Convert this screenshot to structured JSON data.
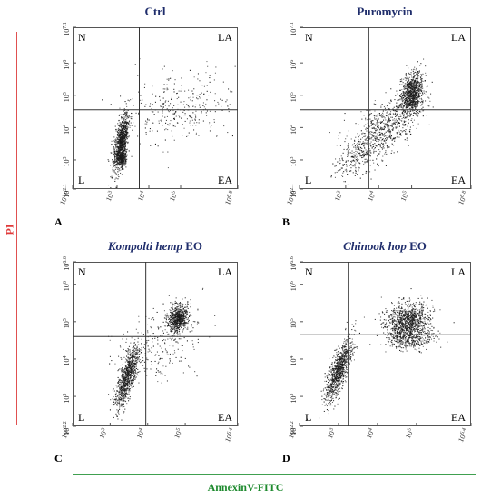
{
  "axis_titles": {
    "y": "PI",
    "x": "AnnexinV-FITC"
  },
  "quadrant_labels": {
    "top_left": "N",
    "top_right": "LA",
    "bottom_left": "L",
    "bottom_right": "EA"
  },
  "colors": {
    "title": "#1f2d6b",
    "y_title": "#e03a3a",
    "x_title": "#1e8a2e",
    "dots": "#1a1a1a"
  },
  "chart_data": [
    {
      "type": "scatter",
      "letter": "A",
      "title_italic": "",
      "title_plain": "Ctrl",
      "x_tick_labels": [
        "10^1.6",
        "10^3",
        "10^4",
        "10^5",
        "10^6.8"
      ],
      "y_tick_labels": [
        "10^2.1",
        "10^3",
        "10^4",
        "10^5",
        "10^6",
        "10^7.1"
      ],
      "xlim": [
        1.6,
        6.8
      ],
      "ylim": [
        2.1,
        7.1
      ],
      "gates": {
        "x": 3.7,
        "y": 4.55
      },
      "populations": [
        {
          "cx": 3.12,
          "cy": 3.55,
          "sx": 0.12,
          "sy": 0.45,
          "n": 950,
          "corr": 0.6
        },
        {
          "cx": 3.15,
          "cy": 3.05,
          "sx": 0.07,
          "sy": 0.12,
          "n": 250,
          "corr": 0.0
        },
        {
          "cx": 4.9,
          "cy": 4.6,
          "sx": 0.9,
          "sy": 0.55,
          "n": 330,
          "corr": 0.2
        }
      ]
    },
    {
      "type": "scatter",
      "letter": "B",
      "title_italic": "",
      "title_plain": "Puromycin",
      "x_tick_labels": [
        "10^1.6",
        "10^3",
        "10^4",
        "10^5",
        "10^6.8"
      ],
      "y_tick_labels": [
        "10^2.1",
        "10^3",
        "10^4",
        "10^5",
        "10^6",
        "10^7.1"
      ],
      "xlim": [
        1.6,
        6.8
      ],
      "ylim": [
        2.1,
        7.1
      ],
      "gates": {
        "x": 3.7,
        "y": 4.55
      },
      "populations": [
        {
          "cx": 5.0,
          "cy": 5.05,
          "sx": 0.17,
          "sy": 0.32,
          "n": 950,
          "corr": 0.3
        },
        {
          "cx": 4.1,
          "cy": 3.95,
          "sx": 0.55,
          "sy": 0.5,
          "n": 700,
          "corr": 0.6
        },
        {
          "cx": 3.2,
          "cy": 3.0,
          "sx": 0.3,
          "sy": 0.3,
          "n": 150,
          "corr": 0.4
        }
      ]
    },
    {
      "type": "scatter",
      "letter": "C",
      "title_italic": "Kompolti hemp",
      "title_plain": " EO",
      "x_tick_labels": [
        "10^2",
        "10^3",
        "10^4",
        "10^5",
        "10^6.4"
      ],
      "y_tick_labels": [
        "10^2.2",
        "10^3",
        "10^4",
        "10^5",
        "10^6",
        "10^6.6"
      ],
      "xlim": [
        2.0,
        6.4
      ],
      "ylim": [
        2.2,
        6.6
      ],
      "gates": {
        "x": 3.95,
        "y": 4.6
      },
      "populations": [
        {
          "cx": 3.45,
          "cy": 3.55,
          "sx": 0.15,
          "sy": 0.42,
          "n": 850,
          "corr": 0.75
        },
        {
          "cx": 4.8,
          "cy": 5.1,
          "sx": 0.13,
          "sy": 0.18,
          "n": 650,
          "corr": 0.3
        },
        {
          "cx": 4.3,
          "cy": 4.4,
          "sx": 0.6,
          "sy": 0.5,
          "n": 260,
          "corr": 0.4
        }
      ]
    },
    {
      "type": "scatter",
      "letter": "D",
      "title_italic": "Chinook hop",
      "title_plain": " EO",
      "x_tick_labels": [
        "10^2",
        "10^3",
        "10^4",
        "10^5",
        "10^6.4"
      ],
      "y_tick_labels": [
        "10^2.2",
        "10^3",
        "10^4",
        "10^5",
        "10^6",
        "10^6.6"
      ],
      "xlim": [
        2.0,
        6.4
      ],
      "ylim": [
        2.2,
        6.6
      ],
      "gates": {
        "x": 3.25,
        "y": 4.65
      },
      "populations": [
        {
          "cx": 3.0,
          "cy": 3.7,
          "sx": 0.17,
          "sy": 0.42,
          "n": 900,
          "corr": 0.75
        },
        {
          "cx": 4.75,
          "cy": 5.0,
          "sx": 0.28,
          "sy": 0.25,
          "n": 1000,
          "corr": 0.2
        },
        {
          "cx": 4.9,
          "cy": 4.55,
          "sx": 0.3,
          "sy": 0.15,
          "n": 300,
          "corr": 0.1
        }
      ]
    }
  ]
}
